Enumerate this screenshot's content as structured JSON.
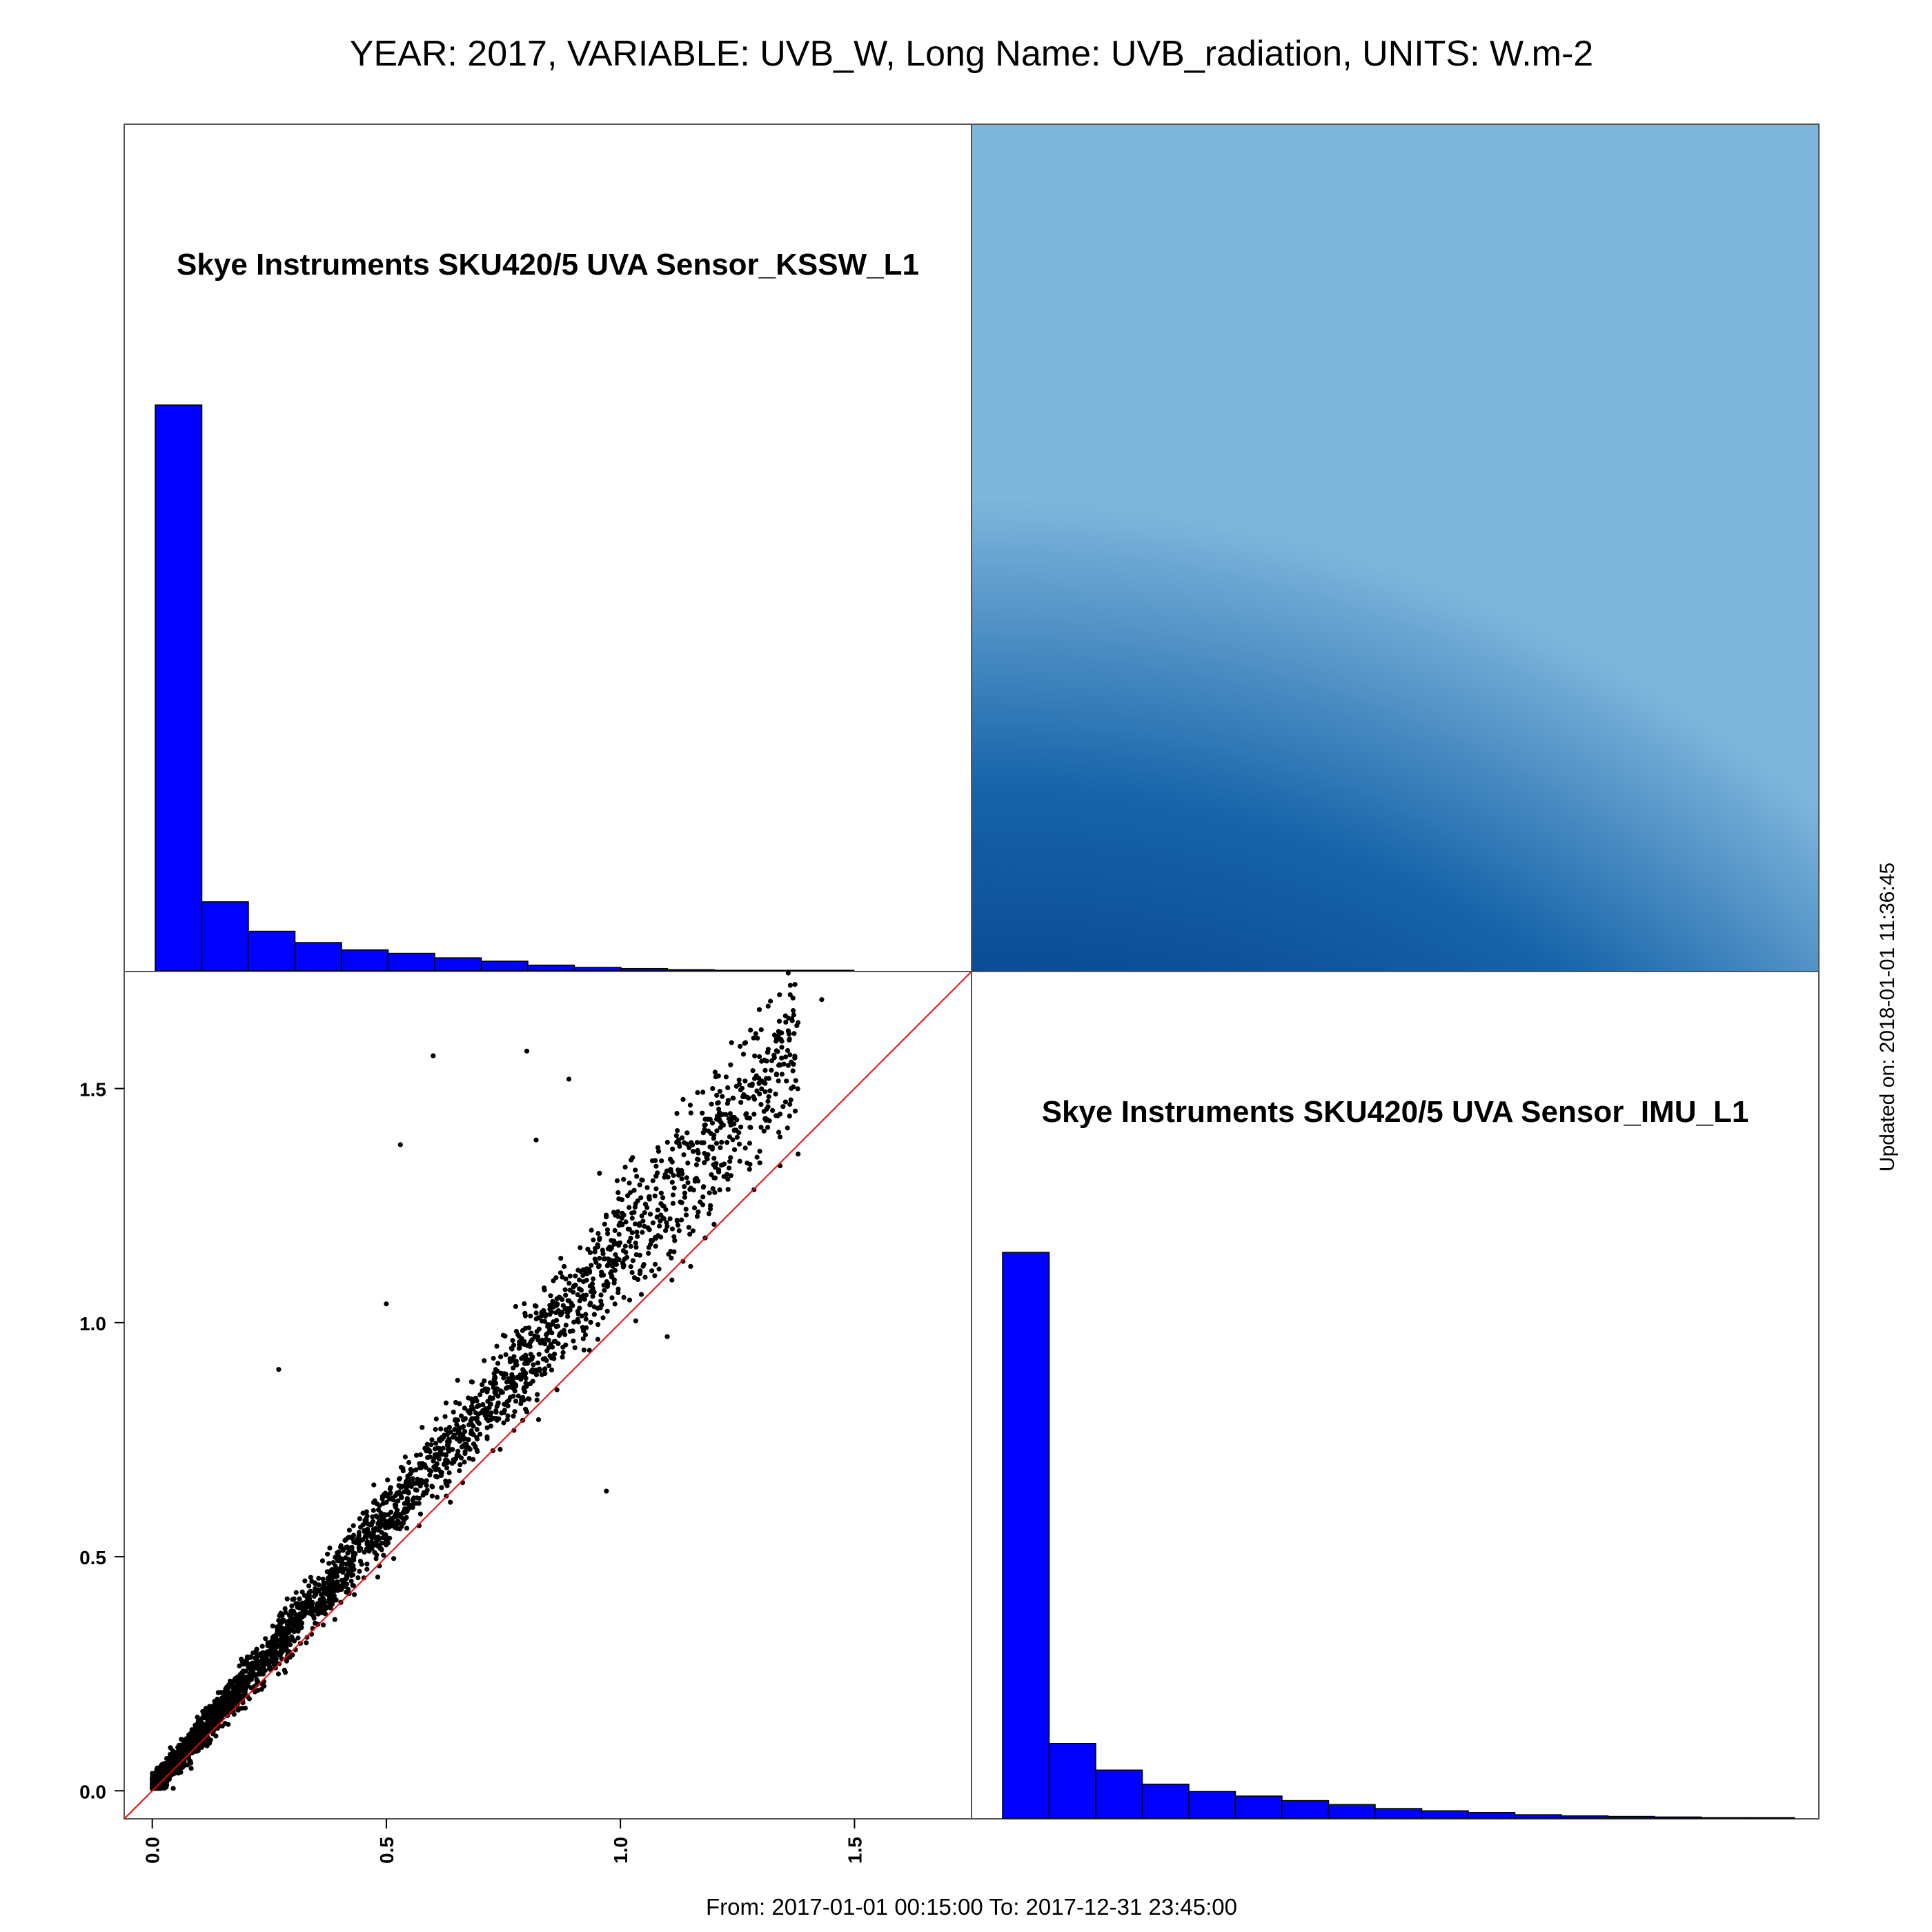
{
  "title": "YEAR: 2017, VARIABLE: UVB_W, Long Name: UVB_radiation, UNITS: W.m-2",
  "footer": "From: 2017-01-01 00:15:00 To: 2017-12-31 23:45:00",
  "updated": "Updated on: 2018-01-01 11:36:45",
  "colors": {
    "bar_fill": "#0000ff",
    "bar_stroke": "#000000",
    "points": "#000000",
    "identity_line": "#ff0000",
    "frame": "#555555",
    "density_low": "#6b1e8e",
    "density_mid": "#082a5c",
    "density_high": "#7fb6dc"
  },
  "chart_data": {
    "type": "scatter",
    "layout": "2x2 pairs matrix",
    "variables": [
      "Skye Instruments SKU420/5 UVA Sensor_KSSW_L1",
      "Skye Instruments SKU420/5 UVA Sensor_IMU_L1"
    ],
    "panels": [
      {
        "position": "top-left",
        "type": "bar",
        "label": "Skye Instruments SKU420/5 UVA Sensor_KSSW_L1",
        "bin_width": 0.1,
        "bin_start": 0.0,
        "relative_counts": [
          1.0,
          0.122,
          0.07,
          0.05,
          0.037,
          0.031,
          0.023,
          0.017,
          0.01,
          0.006,
          0.004,
          0.002,
          0.001,
          0.0005,
          0.0003
        ]
      },
      {
        "position": "top-right",
        "type": "heatmap",
        "description_colors": [
          "purple",
          "dark navy",
          "blue",
          "light blue"
        ]
      },
      {
        "position": "bottom-left",
        "type": "scatter",
        "xlim": [
          -0.06,
          1.75
        ],
        "ylim": [
          -0.06,
          1.75
        ],
        "x_ticks": [
          0.0,
          0.5,
          1.0,
          1.5
        ],
        "x_tick_labels": [
          "0.0",
          "0.5",
          "1.0",
          "1.5"
        ],
        "y_ticks": [
          0.0,
          0.5,
          1.0,
          1.5
        ],
        "y_tick_labels": [
          "0.0",
          "0.5",
          "1.0",
          "1.5"
        ],
        "reference_line": "y = x",
        "approx_trend": "y ≈ 1.15·x",
        "highlighted_points": [
          {
            "x": 1.43,
            "y": 1.69
          },
          {
            "x": 0.6,
            "y": 1.57
          },
          {
            "x": 0.8,
            "y": 1.58
          },
          {
            "x": 0.89,
            "y": 1.52
          },
          {
            "x": 0.27,
            "y": 0.9
          },
          {
            "x": 1.2,
            "y": 1.21
          },
          {
            "x": 1.1,
            "y": 0.97
          },
          {
            "x": 0.97,
            "y": 0.64
          },
          {
            "x": 0.5,
            "y": 1.04
          },
          {
            "x": 1.15,
            "y": 1.12
          },
          {
            "x": 0.53,
            "y": 1.38
          },
          {
            "x": 0.82,
            "y": 1.39
          }
        ]
      },
      {
        "position": "bottom-right",
        "type": "bar",
        "label": "Skye Instruments SKU420/5 UVA Sensor_IMU_L1",
        "bin_width": 0.1,
        "bin_start": 0.0,
        "relative_counts": [
          1.0,
          0.132,
          0.085,
          0.06,
          0.047,
          0.039,
          0.031,
          0.024,
          0.017,
          0.013,
          0.01,
          0.006,
          0.004,
          0.003,
          0.002,
          0.001,
          0.0005
        ]
      }
    ]
  }
}
